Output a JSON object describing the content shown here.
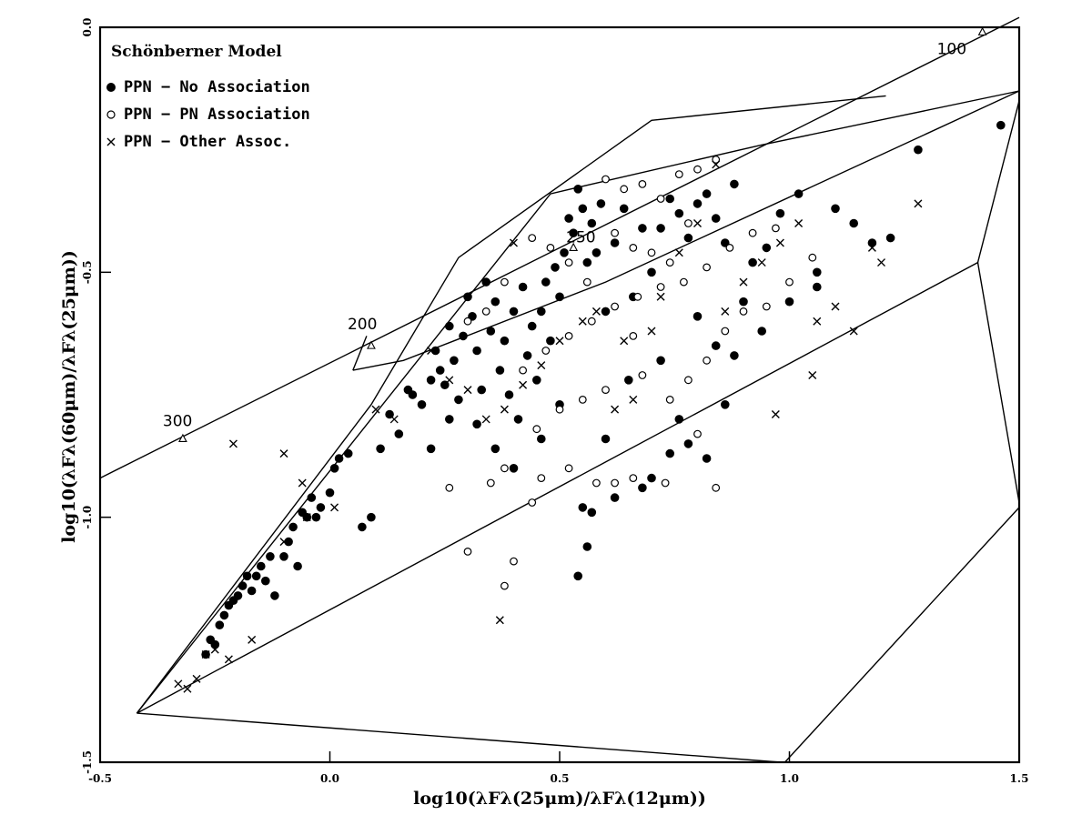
{
  "chart_data": {
    "type": "scatter",
    "title": "",
    "xlabel": "log10(λFλ(25μm)/λFλ(12μm))",
    "ylabel": "log10(λFλ(60μm)/λFλ(25μm))",
    "xlim": [
      -0.5,
      1.5
    ],
    "ylim": [
      -1.5,
      0.0
    ],
    "xticks": [
      -0.5,
      0.0,
      0.5,
      1.0,
      1.5
    ],
    "xtick_labels": [
      "-0.5",
      "0.0",
      "0.5",
      "1.0",
      "1.5"
    ],
    "yticks": [
      -1.5,
      -1.0,
      -0.5,
      0.0
    ],
    "ytick_labels": [
      "-1.5",
      "-1.0",
      "-0.5",
      "0.0"
    ],
    "grid": false,
    "legend": {
      "title": "Schönberner Model",
      "position": "top-left",
      "entries": [
        {
          "marker": "filled-circle",
          "label": "PPN − No Association"
        },
        {
          "marker": "open-circle",
          "label": "PPN − PN Association"
        },
        {
          "marker": "cross",
          "label": "PPN − Other Assoc."
        }
      ]
    },
    "model_lines": [
      {
        "points": [
          [
            -0.5,
            -0.92
          ],
          [
            1.5,
            0.02
          ]
        ]
      },
      {
        "points": [
          [
            0.05,
            -0.7
          ],
          [
            0.08,
            -0.63
          ]
        ]
      },
      {
        "points": [
          [
            0.05,
            -0.7
          ],
          [
            0.16,
            -0.68
          ],
          [
            0.6,
            -0.52
          ],
          [
            1.5,
            -0.13
          ]
        ]
      },
      {
        "points": [
          [
            -0.42,
            -1.4
          ],
          [
            0.48,
            -0.34
          ],
          [
            0.57,
            -0.32
          ],
          [
            0.94,
            -0.24
          ],
          [
            1.5,
            -0.13
          ]
        ]
      },
      {
        "points": [
          [
            -0.42,
            -1.4
          ],
          [
            0.98,
            -1.5
          ]
        ]
      },
      {
        "points": [
          [
            -0.42,
            -1.4
          ],
          [
            1.41,
            -0.48
          ],
          [
            1.5,
            -0.97
          ]
        ]
      },
      {
        "points": [
          [
            1.41,
            -0.48
          ],
          [
            1.5,
            -0.15
          ]
        ]
      },
      {
        "points": [
          [
            0.99,
            -1.5
          ],
          [
            1.5,
            -0.98
          ]
        ]
      },
      {
        "points": [
          [
            -0.42,
            -1.4
          ],
          [
            0.09,
            -0.77
          ],
          [
            0.28,
            -0.47
          ],
          [
            0.7,
            -0.19
          ],
          [
            1.21,
            -0.14
          ]
        ]
      }
    ],
    "model_markers": [
      {
        "label": "300",
        "x": -0.32,
        "y": -0.84
      },
      {
        "label": "200",
        "x": 0.09,
        "y": -0.65
      },
      {
        "label": "250",
        "x": 0.53,
        "y": -0.45
      },
      {
        "label": "100",
        "x": 1.42,
        "y": -0.01
      }
    ],
    "series": [
      {
        "name": "PPN − No Association",
        "marker": "filled-circle",
        "points": [
          [
            -0.27,
            -1.28
          ],
          [
            -0.26,
            -1.25
          ],
          [
            -0.25,
            -1.26
          ],
          [
            -0.24,
            -1.22
          ],
          [
            -0.23,
            -1.2
          ],
          [
            -0.22,
            -1.18
          ],
          [
            -0.21,
            -1.17
          ],
          [
            -0.2,
            -1.16
          ],
          [
            -0.19,
            -1.14
          ],
          [
            -0.18,
            -1.12
          ],
          [
            -0.17,
            -1.15
          ],
          [
            -0.16,
            -1.12
          ],
          [
            -0.15,
            -1.1
          ],
          [
            -0.14,
            -1.13
          ],
          [
            -0.13,
            -1.08
          ],
          [
            -0.12,
            -1.16
          ],
          [
            -0.1,
            -1.08
          ],
          [
            -0.09,
            -1.05
          ],
          [
            -0.08,
            -1.02
          ],
          [
            -0.07,
            -1.1
          ],
          [
            -0.06,
            -0.99
          ],
          [
            -0.05,
            -1.0
          ],
          [
            -0.04,
            -0.96
          ],
          [
            -0.03,
            -1.0
          ],
          [
            -0.02,
            -0.98
          ],
          [
            0.0,
            -0.95
          ],
          [
            0.01,
            -0.9
          ],
          [
            0.02,
            -0.88
          ],
          [
            0.04,
            -0.87
          ],
          [
            0.07,
            -1.02
          ],
          [
            0.09,
            -1.0
          ],
          [
            0.11,
            -0.86
          ],
          [
            0.13,
            -0.79
          ],
          [
            0.15,
            -0.83
          ],
          [
            0.17,
            -0.74
          ],
          [
            0.18,
            -0.75
          ],
          [
            0.2,
            -0.77
          ],
          [
            0.22,
            -0.72
          ],
          [
            0.23,
            -0.66
          ],
          [
            0.24,
            -0.7
          ],
          [
            0.25,
            -0.73
          ],
          [
            0.26,
            -0.61
          ],
          [
            0.27,
            -0.68
          ],
          [
            0.28,
            -0.76
          ],
          [
            0.29,
            -0.63
          ],
          [
            0.3,
            -0.55
          ],
          [
            0.31,
            -0.59
          ],
          [
            0.32,
            -0.66
          ],
          [
            0.33,
            -0.74
          ],
          [
            0.34,
            -0.52
          ],
          [
            0.35,
            -0.62
          ],
          [
            0.36,
            -0.56
          ],
          [
            0.37,
            -0.7
          ],
          [
            0.38,
            -0.64
          ],
          [
            0.39,
            -0.75
          ],
          [
            0.4,
            -0.58
          ],
          [
            0.41,
            -0.8
          ],
          [
            0.42,
            -0.53
          ],
          [
            0.43,
            -0.67
          ],
          [
            0.44,
            -0.61
          ],
          [
            0.45,
            -0.72
          ],
          [
            0.46,
            -0.58
          ],
          [
            0.47,
            -0.52
          ],
          [
            0.48,
            -0.64
          ],
          [
            0.49,
            -0.49
          ],
          [
            0.5,
            -0.55
          ],
          [
            0.51,
            -0.46
          ],
          [
            0.52,
            -0.39
          ],
          [
            0.53,
            -0.42
          ],
          [
            0.54,
            -0.33
          ],
          [
            0.55,
            -0.37
          ],
          [
            0.56,
            -0.48
          ],
          [
            0.57,
            -0.4
          ],
          [
            0.58,
            -0.46
          ],
          [
            0.59,
            -0.36
          ],
          [
            0.6,
            -0.58
          ],
          [
            0.62,
            -0.44
          ],
          [
            0.64,
            -0.37
          ],
          [
            0.66,
            -0.55
          ],
          [
            0.68,
            -0.41
          ],
          [
            0.7,
            -0.5
          ],
          [
            0.72,
            -0.41
          ],
          [
            0.74,
            -0.35
          ],
          [
            0.76,
            -0.38
          ],
          [
            0.78,
            -0.43
          ],
          [
            0.8,
            -0.36
          ],
          [
            0.82,
            -0.34
          ],
          [
            0.84,
            -0.39
          ],
          [
            0.86,
            -0.44
          ],
          [
            0.88,
            -0.32
          ],
          [
            0.9,
            -0.56
          ],
          [
            0.92,
            -0.48
          ],
          [
            0.95,
            -0.45
          ],
          [
            0.98,
            -0.38
          ],
          [
            1.02,
            -0.34
          ],
          [
            1.06,
            -0.5
          ],
          [
            1.1,
            -0.37
          ],
          [
            1.14,
            -0.4
          ],
          [
            1.18,
            -0.44
          ],
          [
            1.22,
            -0.43
          ],
          [
            1.28,
            -0.25
          ],
          [
            1.46,
            -0.2
          ],
          [
            0.54,
            -1.12
          ],
          [
            0.56,
            -1.06
          ],
          [
            0.55,
            -0.98
          ],
          [
            0.57,
            -0.99
          ],
          [
            0.62,
            -0.96
          ],
          [
            0.68,
            -0.94
          ],
          [
            0.74,
            -0.87
          ],
          [
            0.78,
            -0.85
          ],
          [
            0.82,
            -0.88
          ],
          [
            0.86,
            -0.77
          ],
          [
            0.7,
            -0.92
          ],
          [
            0.6,
            -0.84
          ],
          [
            0.65,
            -0.72
          ],
          [
            0.72,
            -0.68
          ],
          [
            0.76,
            -0.8
          ],
          [
            0.8,
            -0.59
          ],
          [
            0.84,
            -0.65
          ],
          [
            0.88,
            -0.67
          ],
          [
            0.94,
            -0.62
          ],
          [
            1.0,
            -0.56
          ],
          [
            1.06,
            -0.53
          ],
          [
            0.22,
            -0.86
          ],
          [
            0.26,
            -0.8
          ],
          [
            0.32,
            -0.81
          ],
          [
            0.36,
            -0.86
          ],
          [
            0.4,
            -0.9
          ],
          [
            0.46,
            -0.84
          ],
          [
            0.5,
            -0.77
          ]
        ]
      },
      {
        "name": "PPN − PN Association",
        "marker": "open-circle",
        "points": [
          [
            0.3,
            -1.07
          ],
          [
            0.38,
            -1.14
          ],
          [
            0.4,
            -1.09
          ],
          [
            0.44,
            -0.97
          ],
          [
            0.46,
            -0.92
          ],
          [
            0.52,
            -0.9
          ],
          [
            0.58,
            -0.93
          ],
          [
            0.62,
            -0.93
          ],
          [
            0.66,
            -0.92
          ],
          [
            0.73,
            -0.93
          ],
          [
            0.8,
            -0.83
          ],
          [
            0.84,
            -0.94
          ],
          [
            0.26,
            -0.94
          ],
          [
            0.35,
            -0.93
          ],
          [
            0.38,
            -0.9
          ],
          [
            0.45,
            -0.82
          ],
          [
            0.5,
            -0.78
          ],
          [
            0.55,
            -0.76
          ],
          [
            0.6,
            -0.74
          ],
          [
            0.68,
            -0.71
          ],
          [
            0.74,
            -0.76
          ],
          [
            0.78,
            -0.72
          ],
          [
            0.82,
            -0.68
          ],
          [
            0.86,
            -0.62
          ],
          [
            0.9,
            -0.58
          ],
          [
            0.95,
            -0.57
          ],
          [
            1.0,
            -0.52
          ],
          [
            1.05,
            -0.47
          ],
          [
            0.42,
            -0.7
          ],
          [
            0.47,
            -0.66
          ],
          [
            0.52,
            -0.63
          ],
          [
            0.57,
            -0.6
          ],
          [
            0.62,
            -0.57
          ],
          [
            0.67,
            -0.55
          ],
          [
            0.72,
            -0.53
          ],
          [
            0.77,
            -0.52
          ],
          [
            0.82,
            -0.49
          ],
          [
            0.87,
            -0.45
          ],
          [
            0.92,
            -0.42
          ],
          [
            0.97,
            -0.41
          ],
          [
            0.6,
            -0.31
          ],
          [
            0.64,
            -0.33
          ],
          [
            0.68,
            -0.32
          ],
          [
            0.72,
            -0.35
          ],
          [
            0.76,
            -0.3
          ],
          [
            0.8,
            -0.29
          ],
          [
            0.84,
            -0.27
          ],
          [
            0.62,
            -0.42
          ],
          [
            0.66,
            -0.45
          ],
          [
            0.7,
            -0.46
          ],
          [
            0.74,
            -0.48
          ],
          [
            0.78,
            -0.4
          ],
          [
            0.3,
            -0.6
          ],
          [
            0.34,
            -0.58
          ],
          [
            0.38,
            -0.52
          ],
          [
            0.44,
            -0.43
          ],
          [
            0.48,
            -0.45
          ],
          [
            0.52,
            -0.48
          ],
          [
            0.56,
            -0.52
          ],
          [
            0.66,
            -0.63
          ]
        ]
      },
      {
        "name": "PPN − Other Assoc.",
        "marker": "cross",
        "points": [
          [
            -0.33,
            -1.34
          ],
          [
            -0.31,
            -1.35
          ],
          [
            -0.29,
            -1.33
          ],
          [
            -0.27,
            -1.28
          ],
          [
            -0.25,
            -1.27
          ],
          [
            -0.22,
            -1.29
          ],
          [
            -0.17,
            -1.25
          ],
          [
            -0.1,
            -1.05
          ],
          [
            -0.05,
            -1.0
          ],
          [
            0.01,
            -0.98
          ],
          [
            0.1,
            -0.78
          ],
          [
            0.14,
            -0.8
          ],
          [
            0.22,
            -0.66
          ],
          [
            0.26,
            -0.72
          ],
          [
            0.3,
            -0.74
          ],
          [
            0.34,
            -0.8
          ],
          [
            0.38,
            -0.78
          ],
          [
            0.42,
            -0.73
          ],
          [
            0.46,
            -0.69
          ],
          [
            0.5,
            -0.64
          ],
          [
            0.55,
            -0.6
          ],
          [
            0.62,
            -0.78
          ],
          [
            0.66,
            -0.76
          ],
          [
            0.72,
            -0.55
          ],
          [
            0.76,
            -0.46
          ],
          [
            0.8,
            -0.4
          ],
          [
            0.86,
            -0.58
          ],
          [
            0.9,
            -0.52
          ],
          [
            0.94,
            -0.48
          ],
          [
            0.98,
            -0.44
          ],
          [
            1.02,
            -0.4
          ],
          [
            1.06,
            -0.6
          ],
          [
            1.1,
            -0.57
          ],
          [
            1.14,
            -0.62
          ],
          [
            1.18,
            -0.45
          ],
          [
            1.2,
            -0.48
          ],
          [
            1.28,
            -0.36
          ],
          [
            0.97,
            -0.79
          ],
          [
            1.05,
            -0.71
          ],
          [
            0.37,
            -1.21
          ],
          [
            -0.21,
            -0.85
          ],
          [
            -0.1,
            -0.87
          ],
          [
            -0.06,
            -0.93
          ],
          [
            0.4,
            -0.44
          ],
          [
            0.64,
            -0.64
          ],
          [
            0.84,
            -0.28
          ],
          [
            0.58,
            -0.58
          ],
          [
            0.7,
            -0.62
          ]
        ]
      }
    ]
  }
}
